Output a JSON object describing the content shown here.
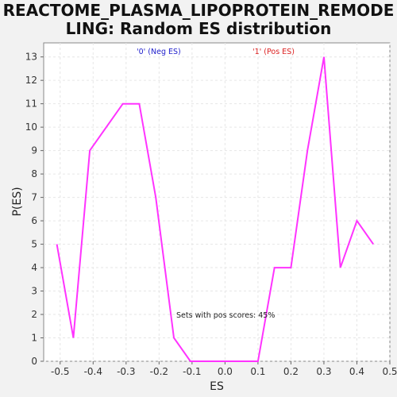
{
  "title_line1": "REACTOME_PLASMA_LIPOPROTEIN_REMODE",
  "title_line2": "LING: Random ES distribution",
  "colors": {
    "line": "#ff33ff",
    "neg_label": "#2222cc",
    "pos_label": "#dd2222",
    "plot_bg": "#ffffff",
    "grid": "#e6e6e6"
  },
  "chart_data": {
    "type": "line",
    "xlabel": "ES",
    "ylabel": "P(ES)",
    "xlim": [
      -0.55,
      0.5
    ],
    "ylim": [
      0,
      13.6
    ],
    "xticks": [
      -0.5,
      -0.4,
      -0.3,
      -0.2,
      -0.1,
      0.0,
      0.1,
      0.2,
      0.3,
      0.4,
      0.5
    ],
    "xtick_labels": [
      "-0.5",
      "-0.4",
      "-0.3",
      "-0.2",
      "-0.1",
      "0.0",
      "0.1",
      "0.2",
      "0.3",
      "0.4",
      "0.5"
    ],
    "yticks": [
      0,
      1,
      2,
      3,
      4,
      5,
      6,
      7,
      8,
      9,
      10,
      11,
      12,
      13
    ],
    "grid": true,
    "series": [
      {
        "x": [
          -0.51,
          -0.46,
          -0.41,
          -0.31,
          -0.26,
          -0.21,
          -0.155,
          -0.105,
          -0.05,
          0.0,
          0.05,
          0.1,
          0.15,
          0.2,
          0.25,
          0.3,
          0.35,
          0.4,
          0.45
        ],
        "y": [
          5,
          1,
          9,
          11,
          11,
          7,
          1,
          0,
          0,
          0,
          0,
          0,
          4,
          4,
          9,
          13,
          4,
          6,
          5
        ]
      }
    ],
    "annotations": {
      "neg_label": "'0' (Neg ES)",
      "pos_label": "'1' (Pos ES)",
      "pos_scores": "Sets with pos scores: 45%"
    }
  }
}
